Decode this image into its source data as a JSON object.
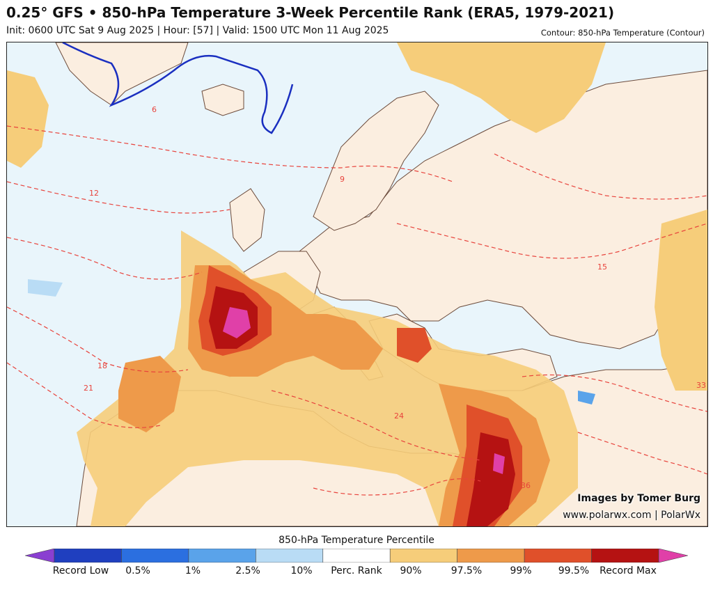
{
  "header": {
    "title": "0.25° GFS • 850-hPa Temperature 3-Week Percentile Rank (ERA5, 1979-2021)",
    "subtitle": "Init: 0600 UTC Sat 9 Aug 2025 | Hour: [57] | Valid: 1500 UTC Mon 11 Aug 2025",
    "contour_note": "Contour: 850-hPa Temperature (Contour)"
  },
  "map": {
    "credit_line1": "Images by Tomer Burg",
    "credit_line2": "www.polarwx.com | PolarWx",
    "contour_labels": [
      "6",
      "9",
      "12",
      "15",
      "18",
      "21",
      "24",
      "33",
      "36"
    ]
  },
  "legend": {
    "title": "850-hPa Temperature Percentile",
    "labels": [
      "Record Low",
      "0.5%",
      "1%",
      "2.5%",
      "10%",
      "Perc. Rank",
      "90%",
      "97.5%",
      "99%",
      "99.5%",
      "Record Max"
    ],
    "colors": [
      "#8a3fd1",
      "#1f3fbf",
      "#2b6fe0",
      "#5aa3ea",
      "#b9dcf5",
      "#ffffff",
      "#f6cd7a",
      "#ee9a4a",
      "#e0502a",
      "#b51212",
      "#e040a8"
    ]
  }
}
